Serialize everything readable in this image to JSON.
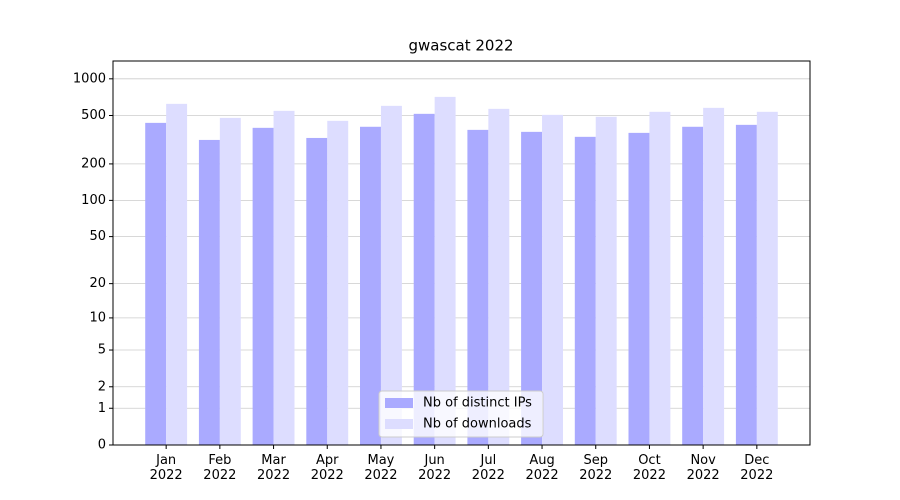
{
  "chart_data": {
    "type": "bar",
    "title": "gwascat 2022",
    "categories": [
      "Jan\n2022",
      "Feb\n2022",
      "Mar\n2022",
      "Apr\n2022",
      "May\n2022",
      "Jun\n2022",
      "Jul\n2022",
      "Aug\n2022",
      "Sep\n2022",
      "Oct\n2022",
      "Nov\n2022",
      "Dec\n2022"
    ],
    "series": [
      {
        "name": "Nb of distinct IPs",
        "color": "#aaaaff",
        "values": [
          435,
          315,
          396,
          327,
          404,
          516,
          381,
          367,
          334,
          360,
          404,
          419
        ]
      },
      {
        "name": "Nb of downloads",
        "color": "#ddddff",
        "values": [
          623,
          478,
          546,
          452,
          600,
          711,
          567,
          506,
          488,
          536,
          578,
          536
        ]
      }
    ],
    "yscale": "log1p",
    "ylim": [
      0,
      1400
    ],
    "yticks": [
      0,
      1,
      2,
      5,
      10,
      20,
      50,
      100,
      200,
      500,
      1000
    ],
    "grid": true,
    "legend": "lower center"
  }
}
